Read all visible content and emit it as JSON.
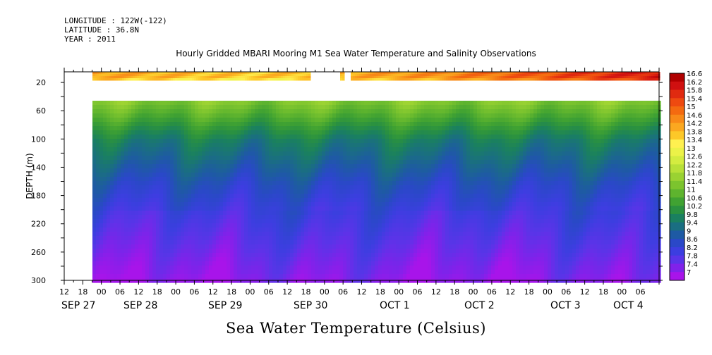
{
  "header": {
    "longitude": "LONGITUDE : 122W(-122)",
    "latitude": "LATITUDE : 36.8N",
    "year": "YEAR : 2011"
  },
  "chart_data": {
    "type": "heatmap",
    "title": "Hourly Gridded MBARI Mooring M1 Sea Water Temperature and Salinity Observations",
    "bottom_title": "Sea Water Temperature (Celsius)",
    "ylabel": "DEPTH (m)",
    "ylim": [
      300,
      5
    ],
    "y_ticks": [
      20,
      60,
      100,
      140,
      180,
      220,
      260,
      300
    ],
    "x_hour_ticks": [
      "12",
      "18",
      "00",
      "06",
      "12",
      "18",
      "00",
      "06",
      "12",
      "18",
      "00",
      "06",
      "12",
      "18",
      "00",
      "06",
      "12",
      "18",
      "00",
      "06",
      "12",
      "18",
      "00",
      "06",
      "12",
      "18",
      "00",
      "06",
      "12",
      "18",
      "00",
      "06"
    ],
    "x_day_labels": [
      "SEP 27",
      "SEP 28",
      "SEP 29",
      "SEP 30",
      "OCT 1",
      "OCT 2",
      "OCT 3",
      "OCT 4"
    ],
    "colorbar_labels": [
      "16.6",
      "16.2",
      "15.8",
      "15.4",
      "15",
      "14.6",
      "14.2",
      "13.8",
      "13.4",
      "13",
      "12.6",
      "12.2",
      "11.8",
      "11.4",
      "11",
      "10.6",
      "10.2",
      "9.8",
      "9.4",
      "9",
      "8.6",
      "8.2",
      "7.8",
      "7.4",
      "7"
    ],
    "colorbar_colors": [
      "#b00000",
      "#d01010",
      "#e02a10",
      "#ee4a10",
      "#f46a10",
      "#f88a18",
      "#fba820",
      "#fdc828",
      "#fff050",
      "#ecf248",
      "#d4ec40",
      "#b8e038",
      "#9ad232",
      "#7cc42e",
      "#5eb42e",
      "#40a232",
      "#2a9140",
      "#1a8060",
      "#1a6e82",
      "#1e5aa4",
      "#2a48c8",
      "#3c3ee0",
      "#5a34e8",
      "#8022ea",
      "#a814ea"
    ],
    "depth_profile": [
      {
        "depth": 10,
        "temp": 14.4
      },
      {
        "depth": 40,
        "temp": 11.6
      },
      {
        "depth": 60,
        "temp": 11.0
      },
      {
        "depth": 80,
        "temp": 10.3
      },
      {
        "depth": 100,
        "temp": 9.7
      },
      {
        "depth": 130,
        "temp": 9.2
      },
      {
        "depth": 160,
        "temp": 8.7
      },
      {
        "depth": 200,
        "temp": 8.2
      },
      {
        "depth": 240,
        "temp": 7.8
      },
      {
        "depth": 270,
        "temp": 7.5
      },
      {
        "depth": 300,
        "temp": 7.2
      }
    ],
    "surface_temp_trend": [
      14.2,
      14.0,
      13.8,
      13.7,
      13.9,
      14.2,
      14.4,
      14.8,
      15.2,
      15.6,
      16.0
    ],
    "grid": false
  }
}
